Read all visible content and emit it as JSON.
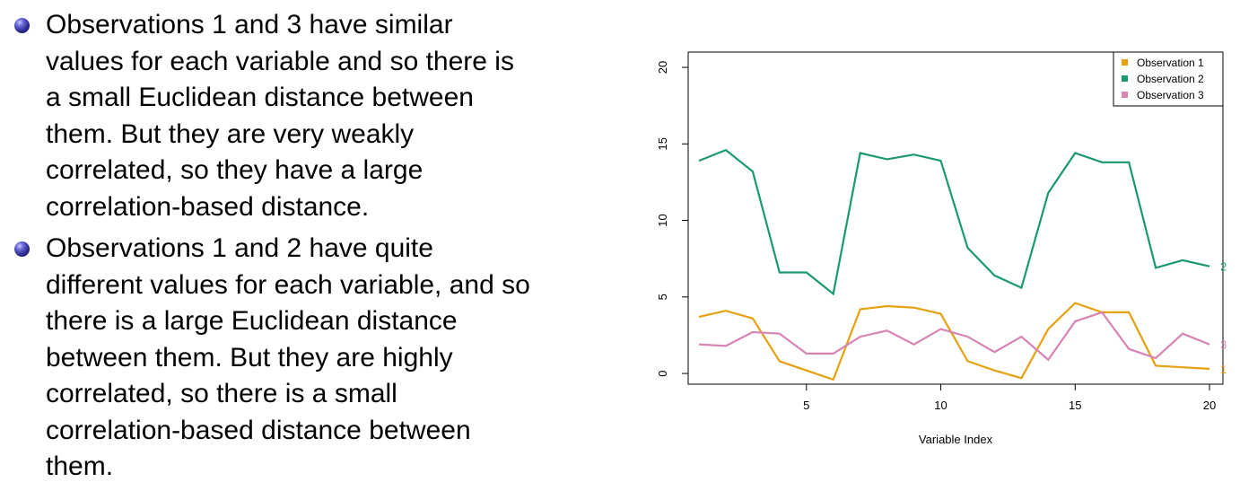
{
  "bullets": [
    {
      "text": "Observations 1 and 3 have similar values for each variable and so there is a small Euclidean distance between them. But they are very weakly correlated, so they have a large correlation-based distance.",
      "lines": [
        "Observations 1 and 3 have similar",
        "values for each variable and so there is",
        "a small Euclidean distance between",
        "them. But they are very weakly",
        "correlated, so they have a large",
        "correlation-based distance."
      ]
    },
    {
      "text": "Observations 1 and 2 have quite different values for each variable, and so there is a large Euclidean distance between them. But they are highly correlated, so there is a small correlation-based distance between them.",
      "lines": [
        "Observations 1 and 2 have quite",
        "different values for each variable, and so",
        "there is a large Euclidean distance",
        "between them. But they are highly",
        "correlated, so there is a small",
        "correlation-based distance between",
        "them."
      ]
    }
  ],
  "chart_data": {
    "type": "line",
    "title": "",
    "xlabel": "Variable Index",
    "ylabel": "",
    "x": [
      1,
      2,
      3,
      4,
      5,
      6,
      7,
      8,
      9,
      10,
      11,
      12,
      13,
      14,
      15,
      16,
      17,
      18,
      19,
      20
    ],
    "xlim": [
      0.6,
      20.5
    ],
    "ylim": [
      -0.7,
      21
    ],
    "xticks": [
      5,
      10,
      15,
      20
    ],
    "yticks": [
      0,
      5,
      10,
      15,
      20
    ],
    "grid": false,
    "legend_position": "top-right",
    "series": [
      {
        "name": "Observation 1",
        "end_label": "1",
        "color": "#E6A010",
        "values": [
          3.7,
          4.1,
          3.6,
          0.8,
          0.2,
          -0.4,
          4.2,
          4.4,
          4.3,
          3.9,
          0.8,
          0.2,
          -0.3,
          2.9,
          4.6,
          4.0,
          4.0,
          0.5,
          0.4,
          0.3
        ]
      },
      {
        "name": "Observation 2",
        "end_label": "2",
        "color": "#1A9A6E",
        "values": [
          13.9,
          14.6,
          13.2,
          6.6,
          6.6,
          5.2,
          14.4,
          14.0,
          14.3,
          13.9,
          8.2,
          6.4,
          5.6,
          11.8,
          14.4,
          13.8,
          13.8,
          6.9,
          7.4,
          7.0
        ]
      },
      {
        "name": "Observation 3",
        "end_label": "3",
        "color": "#D783B4",
        "values": [
          1.9,
          1.8,
          2.7,
          2.6,
          1.3,
          1.3,
          2.4,
          2.8,
          1.9,
          2.9,
          2.4,
          1.4,
          2.4,
          0.9,
          3.4,
          4.0,
          1.6,
          1.0,
          2.6,
          1.9
        ]
      }
    ]
  }
}
